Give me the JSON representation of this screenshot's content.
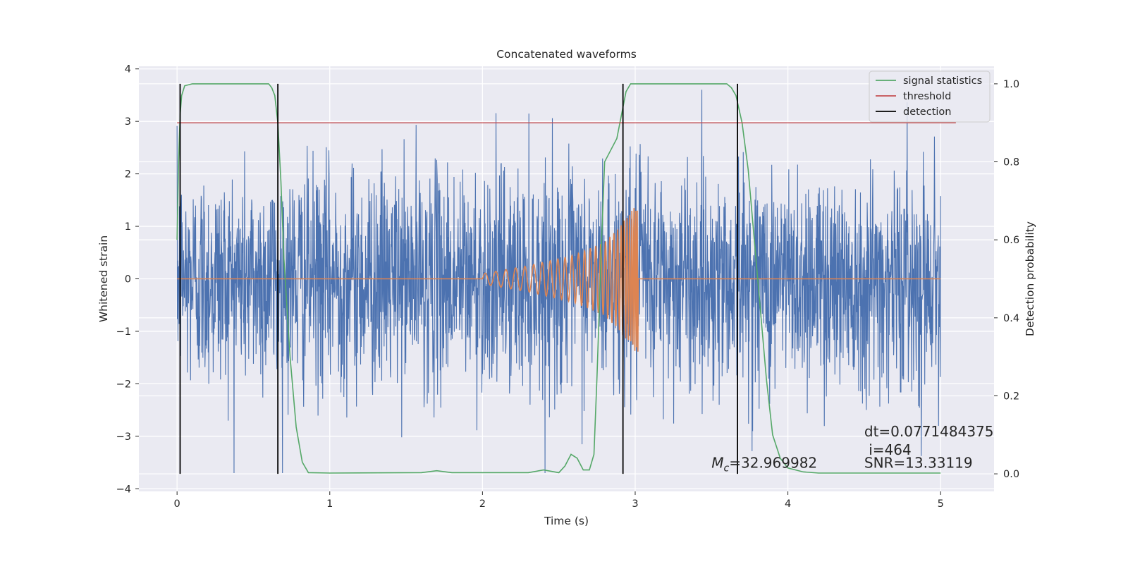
{
  "chart_data": {
    "type": "line",
    "title": "Concatenated waveforms",
    "xlabel": "Time (s)",
    "ylabel": "Whitened strain",
    "y2label": "Detection probability",
    "xlim": [
      -0.25,
      5.35
    ],
    "ylim": [
      -4.05,
      4.05
    ],
    "y2lim": [
      -0.045,
      1.045
    ],
    "xticks": [
      0,
      1,
      2,
      3,
      4,
      5
    ],
    "yticks": [
      -4,
      -3,
      -2,
      -1,
      0,
      1,
      2,
      3,
      4
    ],
    "y2ticks": [
      0.0,
      0.2,
      0.4,
      0.6,
      0.8,
      1.0
    ],
    "grid": true,
    "legend_position": "upper right",
    "colors": {
      "background": "#eaeaf2",
      "strain": "#4c72b0",
      "template": "#dd8452",
      "signal_statistics": "#55a868",
      "threshold": "#c44e52",
      "detection": "#000000"
    },
    "legend": [
      {
        "label": "signal statistics",
        "color": "#55a868"
      },
      {
        "label": "threshold",
        "color": "#c44e52"
      },
      {
        "label": "detection",
        "color": "#000000"
      }
    ],
    "series": [
      {
        "name": "strain",
        "description": "whitened noisy strain, approx. N(0,1), clipped display extrema",
        "x_range": [
          0,
          5
        ],
        "extrema": {
          "max": 3.7,
          "min": -3.7
        }
      },
      {
        "name": "template",
        "description": "chirp waveform on Whitened strain axis",
        "x": [
          0,
          2.0,
          2.3,
          2.6,
          2.8,
          2.9,
          3.0,
          5.0
        ],
        "envelope": [
          0,
          0.1,
          0.25,
          0.45,
          0.7,
          1.0,
          1.4,
          0
        ]
      },
      {
        "name": "signal statistics",
        "axis": "right",
        "x": [
          0,
          0.01,
          0.02,
          0.03,
          0.05,
          0.1,
          0.6,
          0.62,
          0.64,
          0.66,
          0.68,
          0.7,
          0.74,
          0.78,
          0.82,
          0.86,
          1.0,
          1.6,
          1.7,
          1.8,
          2.0,
          2.3,
          2.4,
          2.5,
          2.54,
          2.58,
          2.62,
          2.66,
          2.7,
          2.73,
          2.75,
          2.78,
          2.8,
          2.84,
          2.88,
          2.91,
          2.94,
          2.97,
          3.0,
          3.1,
          3.6,
          3.63,
          3.66,
          3.7,
          3.74,
          3.78,
          3.82,
          3.86,
          3.9,
          3.95,
          4.0,
          4.1,
          4.2,
          5.0
        ],
        "y": [
          0.6,
          0.8,
          0.92,
          0.97,
          0.995,
          1.0,
          1.0,
          0.99,
          0.97,
          0.9,
          0.75,
          0.55,
          0.3,
          0.12,
          0.03,
          0.003,
          0.002,
          0.003,
          0.008,
          0.003,
          0.003,
          0.003,
          0.01,
          0.003,
          0.02,
          0.05,
          0.04,
          0.01,
          0.01,
          0.05,
          0.25,
          0.6,
          0.8,
          0.83,
          0.86,
          0.92,
          0.98,
          1.0,
          1.0,
          1.0,
          1.0,
          0.99,
          0.97,
          0.9,
          0.78,
          0.6,
          0.42,
          0.24,
          0.1,
          0.04,
          0.015,
          0.005,
          0.002,
          0.002
        ]
      },
      {
        "name": "threshold",
        "axis": "right",
        "x": [
          0,
          5.1
        ],
        "y": [
          0.9,
          0.9
        ]
      },
      {
        "name": "detection",
        "axis": "right",
        "x": [
          0.02,
          0.66,
          2.92,
          3.67
        ],
        "y_range": [
          0.0,
          1.0
        ]
      }
    ],
    "annotations": [
      {
        "text": "dt=0.0771484375",
        "x": 4.5,
        "y": -3.0
      },
      {
        "text": " i=464",
        "x": 4.5,
        "y": -3.35
      },
      {
        "text": "SNR=13.33119",
        "x": 4.5,
        "y": -3.6
      },
      {
        "text": "=32.969982",
        "prefix": "M",
        "sub": "c",
        "x": 3.5,
        "y": -3.6
      }
    ]
  }
}
